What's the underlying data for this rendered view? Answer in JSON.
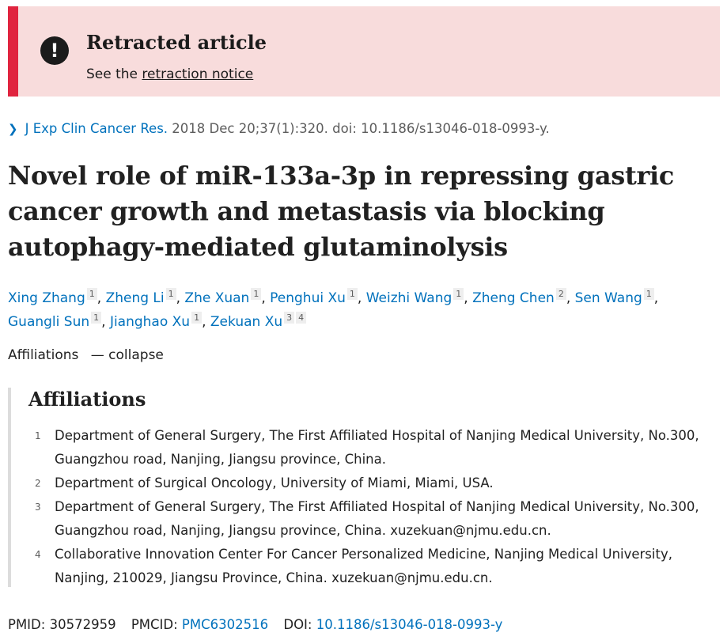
{
  "banner": {
    "icon": "exclamation-circle-icon",
    "title": "Retracted article",
    "sub_prefix": "See the ",
    "notice_link": "retraction notice",
    "accent_color": "#e0243f",
    "bg_color": "#f8dcdc"
  },
  "citation": {
    "journal": "J Exp Clin Cancer Res.",
    "details": " 2018 Dec 20;37(1):320. doi: 10.1186/s13046-018-0993-y."
  },
  "title": "Novel role of miR-133a-3p in repressing gastric cancer growth and metastasis via blocking autophagy-mediated glutaminolysis",
  "authors": [
    {
      "name": "Xing Zhang",
      "aff": [
        "1"
      ]
    },
    {
      "name": "Zheng Li",
      "aff": [
        "1"
      ]
    },
    {
      "name": "Zhe Xuan",
      "aff": [
        "1"
      ]
    },
    {
      "name": "Penghui Xu",
      "aff": [
        "1"
      ]
    },
    {
      "name": "Weizhi Wang",
      "aff": [
        "1"
      ]
    },
    {
      "name": "Zheng Chen",
      "aff": [
        "2"
      ]
    },
    {
      "name": "Sen Wang",
      "aff": [
        "1"
      ]
    },
    {
      "name": "Guangli Sun",
      "aff": [
        "1"
      ]
    },
    {
      "name": "Jianghao Xu",
      "aff": [
        "1"
      ]
    },
    {
      "name": "Zekuan Xu",
      "aff": [
        "3",
        "4"
      ]
    }
  ],
  "affiliations_toggle": {
    "label": "Affiliations",
    "dash": "—",
    "action": "collapse"
  },
  "affiliations": {
    "heading": "Affiliations",
    "items": [
      {
        "num": "1",
        "text": "Department of General Surgery, The First Affiliated Hospital of Nanjing Medical University, No.300, Guangzhou road, Nanjing, Jiangsu province, China."
      },
      {
        "num": "2",
        "text": "Department of Surgical Oncology, University of Miami, Miami, USA."
      },
      {
        "num": "3",
        "text": "Department of General Surgery, The First Affiliated Hospital of Nanjing Medical University, No.300, Guangzhou road, Nanjing, Jiangsu province, China. xuzekuan@njmu.edu.cn."
      },
      {
        "num": "4",
        "text": "Collaborative Innovation Center For Cancer Personalized Medicine, Nanjing Medical University, Nanjing, 210029, Jiangsu Province, China. xuzekuan@njmu.edu.cn."
      }
    ]
  },
  "identifiers": {
    "pmid_label": "PMID:",
    "pmid": "30572959",
    "pmcid_label": "PMCID:",
    "pmcid": "PMC6302516",
    "doi_label": "DOI:",
    "doi": "10.1186/s13046-018-0993-y"
  }
}
